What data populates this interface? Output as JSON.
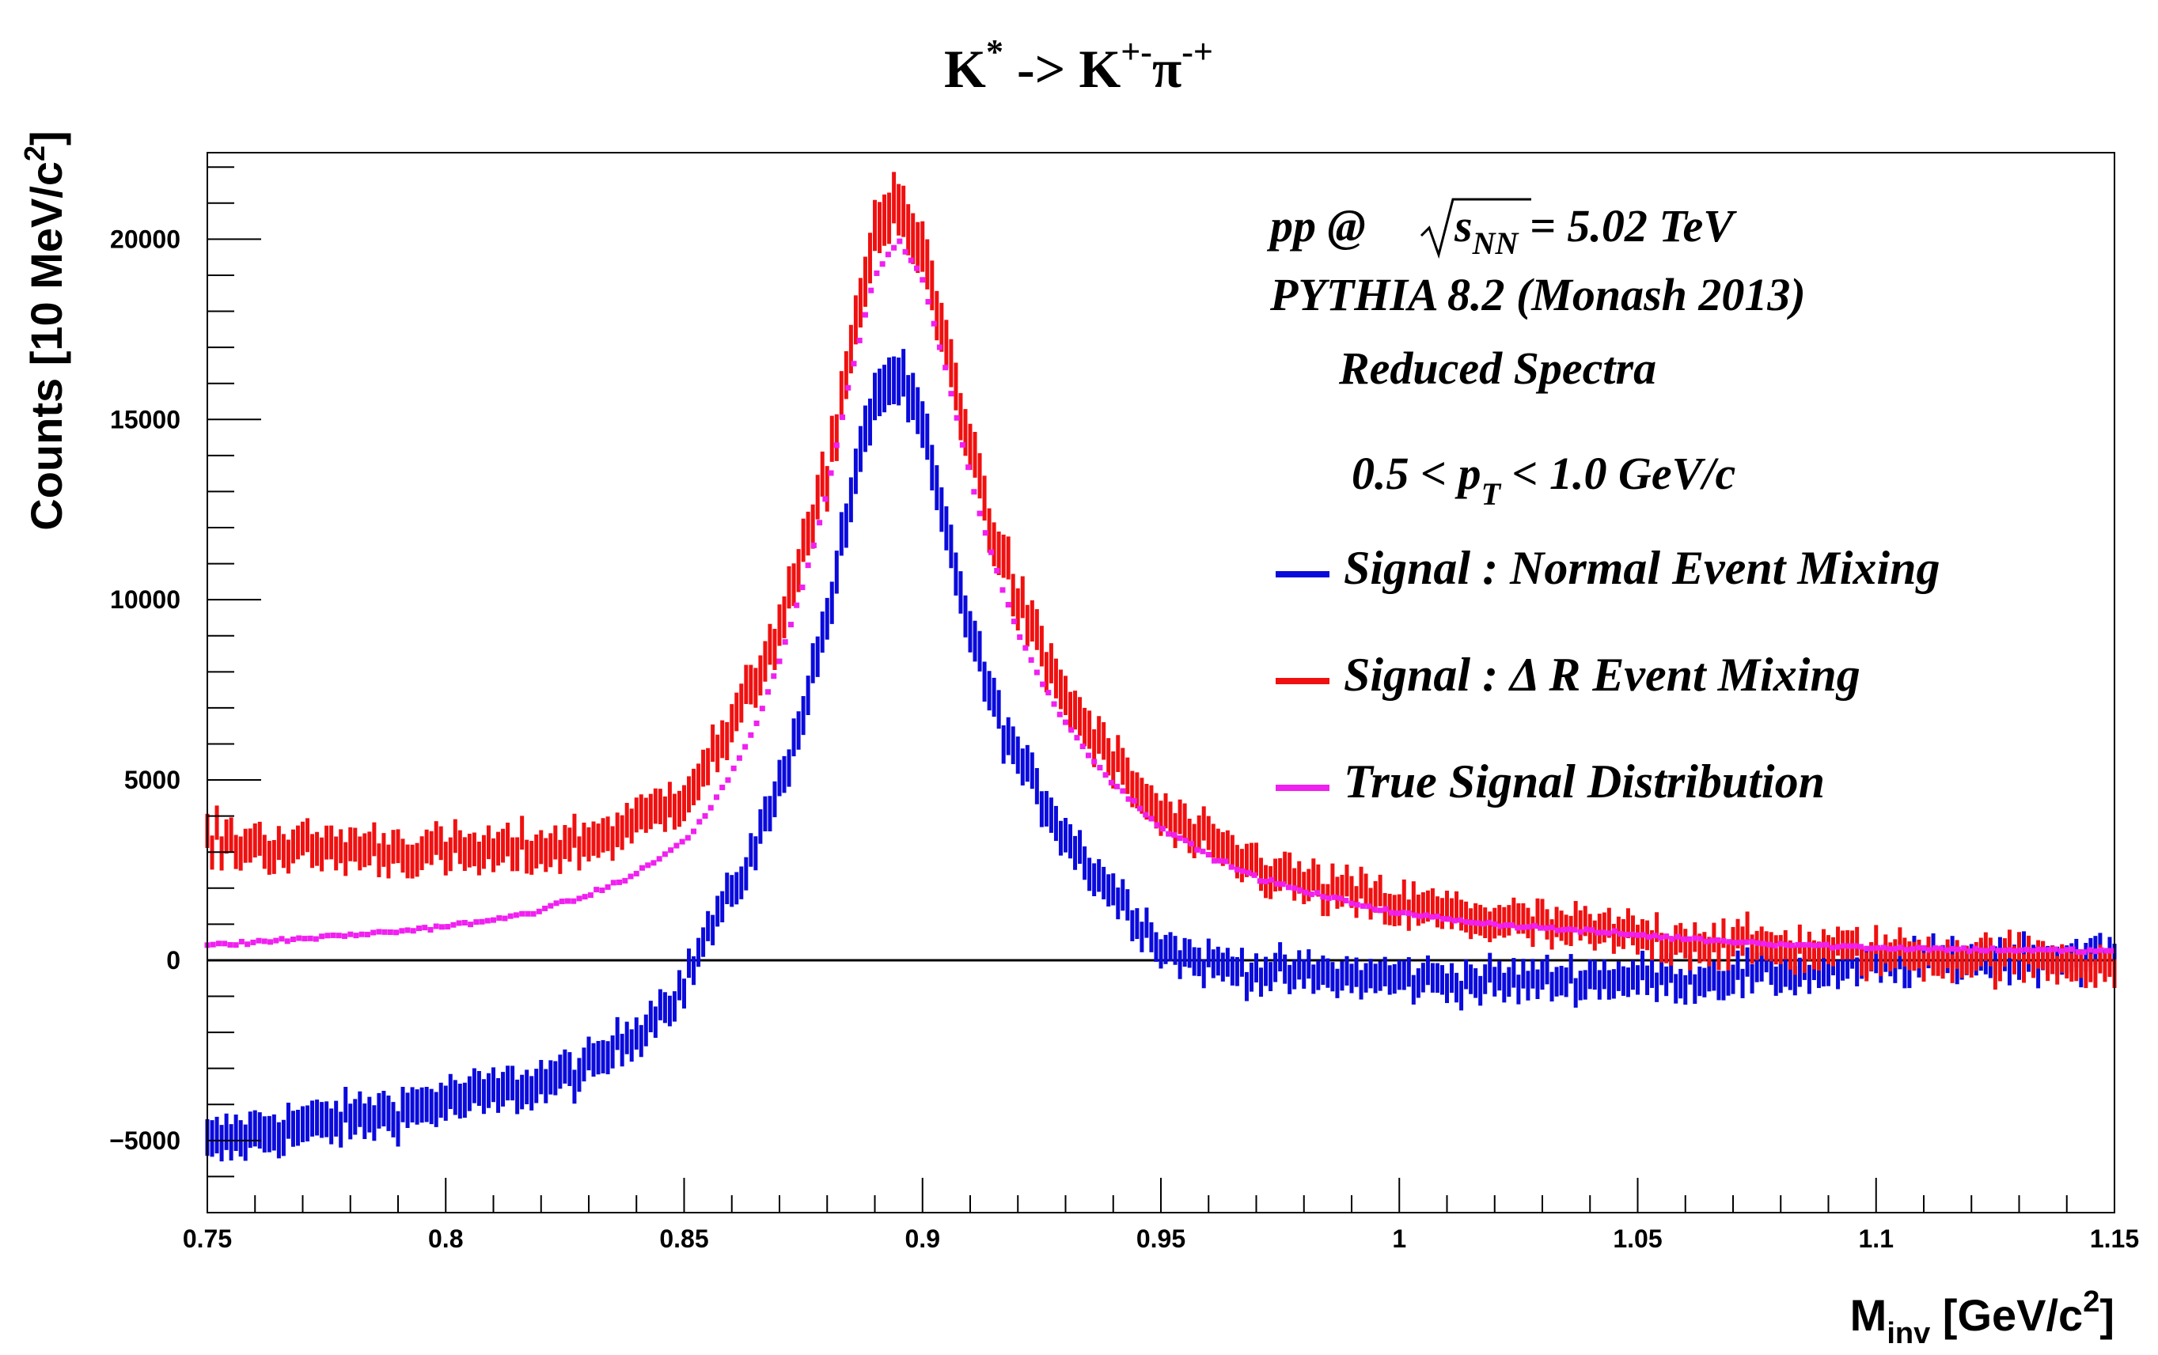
{
  "chart_data": {
    "type": "line",
    "title": {
      "base": "K",
      "sup1": "*",
      "arrow": " -> K",
      "sup2": "+-",
      "pi": "π",
      "sup3": "-+"
    },
    "xlabel": {
      "base": "M",
      "sub": "inv",
      "unit_pre": " [GeV/c",
      "unit_sup": "2",
      "unit_post": "]"
    },
    "ylabel": {
      "text": "Counts [10 MeV/c",
      "sup": "2",
      "post": "]"
    },
    "xlim": [
      0.75,
      1.15
    ],
    "ylim": [
      -7000,
      22400
    ],
    "x_ticks": [
      0.75,
      0.8,
      0.85,
      0.9,
      0.95,
      1,
      1.05,
      1.1,
      1.15
    ],
    "x_tick_labels": [
      "0.75",
      "0.8",
      "0.85",
      "0.9",
      "0.95",
      "1",
      "1.05",
      "1.1",
      "1.15"
    ],
    "y_ticks": [
      -5000,
      0,
      5000,
      10000,
      15000,
      20000
    ],
    "y_tick_labels": [
      "−5000",
      "0",
      "5000",
      "10000",
      "15000",
      "20000"
    ],
    "zero_line": true,
    "annotations": {
      "line1_a": "pp @",
      "line1_s": "s",
      "line1_sub": "NN",
      "line1_b": " = 5.02 TeV",
      "line2": "PYTHIA 8.2 (Monash 2013)",
      "line3": "Reduced Spectra",
      "line4_a": "0.5 < p",
      "line4_sub": "T",
      "line4_b": " < 1.0 GeV/c"
    },
    "legend_position": "right",
    "series": [
      {
        "name": "Signal : Normal Event Mixing",
        "color": "#0a0adc",
        "style": "errorbar",
        "keypoints": [
          [
            0.75,
            -5100
          ],
          [
            0.76,
            -4800
          ],
          [
            0.77,
            -4600
          ],
          [
            0.78,
            -4400
          ],
          [
            0.79,
            -4200
          ],
          [
            0.8,
            -3900
          ],
          [
            0.81,
            -3700
          ],
          [
            0.82,
            -3400
          ],
          [
            0.83,
            -3000
          ],
          [
            0.84,
            -2000
          ],
          [
            0.85,
            -700
          ],
          [
            0.855,
            800
          ],
          [
            0.86,
            1800
          ],
          [
            0.865,
            3200
          ],
          [
            0.87,
            4800
          ],
          [
            0.875,
            7000
          ],
          [
            0.88,
            9500
          ],
          [
            0.885,
            12800
          ],
          [
            0.89,
            15700
          ],
          [
            0.895,
            16200
          ],
          [
            0.9,
            14800
          ],
          [
            0.905,
            11800
          ],
          [
            0.91,
            9200
          ],
          [
            0.915,
            7000
          ],
          [
            0.92,
            5600
          ],
          [
            0.925,
            4500
          ],
          [
            0.93,
            3500
          ],
          [
            0.935,
            2600
          ],
          [
            0.94,
            1900
          ],
          [
            0.945,
            1200
          ],
          [
            0.95,
            400
          ],
          [
            0.955,
            100
          ],
          [
            0.96,
            -100
          ],
          [
            0.97,
            -300
          ],
          [
            0.98,
            -400
          ],
          [
            1.0,
            -500
          ],
          [
            1.02,
            -600
          ],
          [
            1.04,
            -500
          ],
          [
            1.06,
            -500
          ],
          [
            1.08,
            -350
          ],
          [
            1.1,
            -150
          ],
          [
            1.12,
            50
          ],
          [
            1.15,
            100
          ]
        ],
        "noise": 260,
        "step": 0.001
      },
      {
        "name": "Signal :  Δ R Event Mixing",
        "color": "#f01010",
        "style": "errorbar",
        "keypoints": [
          [
            0.75,
            3300
          ],
          [
            0.76,
            3200
          ],
          [
            0.77,
            3100
          ],
          [
            0.78,
            3100
          ],
          [
            0.79,
            3050
          ],
          [
            0.8,
            3000
          ],
          [
            0.81,
            3000
          ],
          [
            0.82,
            3100
          ],
          [
            0.83,
            3300
          ],
          [
            0.84,
            3800
          ],
          [
            0.85,
            4600
          ],
          [
            0.855,
            5500
          ],
          [
            0.86,
            6400
          ],
          [
            0.865,
            7800
          ],
          [
            0.87,
            9300
          ],
          [
            0.875,
            11200
          ],
          [
            0.88,
            13500
          ],
          [
            0.885,
            17000
          ],
          [
            0.89,
            20300
          ],
          [
            0.895,
            20800
          ],
          [
            0.9,
            19600
          ],
          [
            0.905,
            17000
          ],
          [
            0.91,
            14300
          ],
          [
            0.915,
            11800
          ],
          [
            0.92,
            10000
          ],
          [
            0.925,
            8500
          ],
          [
            0.93,
            7300
          ],
          [
            0.935,
            6300
          ],
          [
            0.94,
            5500
          ],
          [
            0.945,
            4700
          ],
          [
            0.95,
            4000
          ],
          [
            0.96,
            3200
          ],
          [
            0.97,
            2600
          ],
          [
            0.98,
            2100
          ],
          [
            1.0,
            1500
          ],
          [
            1.02,
            1100
          ],
          [
            1.04,
            800
          ],
          [
            1.06,
            550
          ],
          [
            1.08,
            350
          ],
          [
            1.1,
            200
          ],
          [
            1.12,
            100
          ],
          [
            1.15,
            -100
          ]
        ],
        "noise": 300,
        "step": 0.001
      },
      {
        "name": "True Signal Distribution",
        "color": "#f020f0",
        "style": "dots",
        "keypoints": [
          [
            0.75,
            400
          ],
          [
            0.77,
            600
          ],
          [
            0.79,
            800
          ],
          [
            0.81,
            1100
          ],
          [
            0.82,
            1400
          ],
          [
            0.83,
            1800
          ],
          [
            0.84,
            2400
          ],
          [
            0.85,
            3300
          ],
          [
            0.855,
            4100
          ],
          [
            0.86,
            5200
          ],
          [
            0.865,
            6500
          ],
          [
            0.87,
            8300
          ],
          [
            0.875,
            10400
          ],
          [
            0.88,
            13000
          ],
          [
            0.885,
            16200
          ],
          [
            0.89,
            19000
          ],
          [
            0.895,
            20000
          ],
          [
            0.9,
            18900
          ],
          [
            0.905,
            16300
          ],
          [
            0.91,
            13400
          ],
          [
            0.915,
            11000
          ],
          [
            0.92,
            9100
          ],
          [
            0.925,
            7700
          ],
          [
            0.93,
            6600
          ],
          [
            0.935,
            5700
          ],
          [
            0.94,
            4900
          ],
          [
            0.945,
            4300
          ],
          [
            0.95,
            3700
          ],
          [
            0.96,
            2900
          ],
          [
            0.97,
            2300
          ],
          [
            0.98,
            1900
          ],
          [
            1.0,
            1300
          ],
          [
            1.02,
            1000
          ],
          [
            1.04,
            800
          ],
          [
            1.06,
            600
          ],
          [
            1.08,
            450
          ],
          [
            1.1,
            350
          ],
          [
            1.12,
            300
          ],
          [
            1.15,
            250
          ]
        ],
        "noise": 40,
        "step": 0.0012
      }
    ]
  }
}
